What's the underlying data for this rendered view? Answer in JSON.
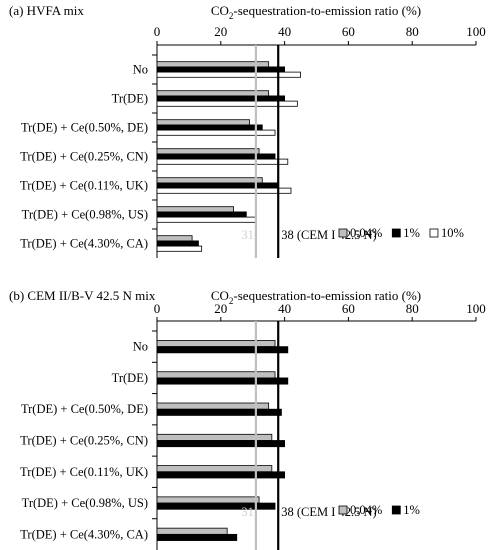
{
  "chart_data": [
    {
      "type": "bar",
      "orientation": "horizontal",
      "title": "(a)  HVFA mix",
      "xlabel_parts": [
        "CO",
        "2",
        "-sequestration-to-emission ratio (%)"
      ],
      "xlim": [
        0,
        100
      ],
      "xticks": [
        "0",
        "20",
        "40",
        "60",
        "80",
        "100"
      ],
      "xtick_values": [
        0,
        20,
        40,
        60,
        80,
        100
      ],
      "categories": [
        "No",
        "Tr(DE)",
        "Tr(DE) + Ce(0.50%, DE)",
        "Tr(DE) + Ce(0.25%, CN)",
        "Tr(DE) + Ce(0.11%, UK)",
        "Tr(DE) + Ce(0.98%, US)",
        "Tr(DE) + Ce(4.30%, CA)"
      ],
      "series": [
        {
          "name": "0.04%",
          "color": "#bfbfbf",
          "values": [
            35,
            35,
            29,
            32,
            33,
            24,
            11
          ]
        },
        {
          "name": "1%",
          "color": "#000000",
          "values": [
            40,
            40,
            33,
            37,
            38,
            28,
            13
          ]
        },
        {
          "name": "10%",
          "color": "#ffffff",
          "values": [
            45,
            44,
            37,
            41,
            42,
            31,
            14
          ]
        }
      ],
      "reference_lines": [
        {
          "value": 31,
          "label": "31",
          "color": "#bfbfbf"
        },
        {
          "value": 38,
          "label": "38 (CEM I 42.5 N)",
          "color": "#000000"
        }
      ],
      "legend_position": "bottom-right",
      "grid": false
    },
    {
      "type": "bar",
      "orientation": "horizontal",
      "title": "(b)  CEM II/B-V 42.5 N mix",
      "xlabel_parts": [
        "CO",
        "2",
        "-sequestration-to-emission ratio (%)"
      ],
      "xlim": [
        0,
        100
      ],
      "xticks": [
        "0",
        "20",
        "40",
        "60",
        "80",
        "100"
      ],
      "xtick_values": [
        0,
        20,
        40,
        60,
        80,
        100
      ],
      "categories": [
        "No",
        "Tr(DE)",
        "Tr(DE) + Ce(0.50%, DE)",
        "Tr(DE) + Ce(0.25%, CN)",
        "Tr(DE) + Ce(0.11%, UK)",
        "Tr(DE) + Ce(0.98%, US)",
        "Tr(DE) + Ce(4.30%, CA)"
      ],
      "series": [
        {
          "name": "0.04%",
          "color": "#bfbfbf",
          "values": [
            37,
            37,
            35,
            36,
            36,
            32,
            22
          ]
        },
        {
          "name": "1%",
          "color": "#000000",
          "values": [
            41,
            41,
            39,
            40,
            40,
            37,
            25
          ]
        }
      ],
      "reference_lines": [
        {
          "value": 31,
          "label": "31",
          "color": "#bfbfbf"
        },
        {
          "value": 38,
          "label": "38 (CEM I 42.5 N)",
          "color": "#000000"
        }
      ],
      "legend_position": "bottom-right",
      "grid": false
    }
  ]
}
